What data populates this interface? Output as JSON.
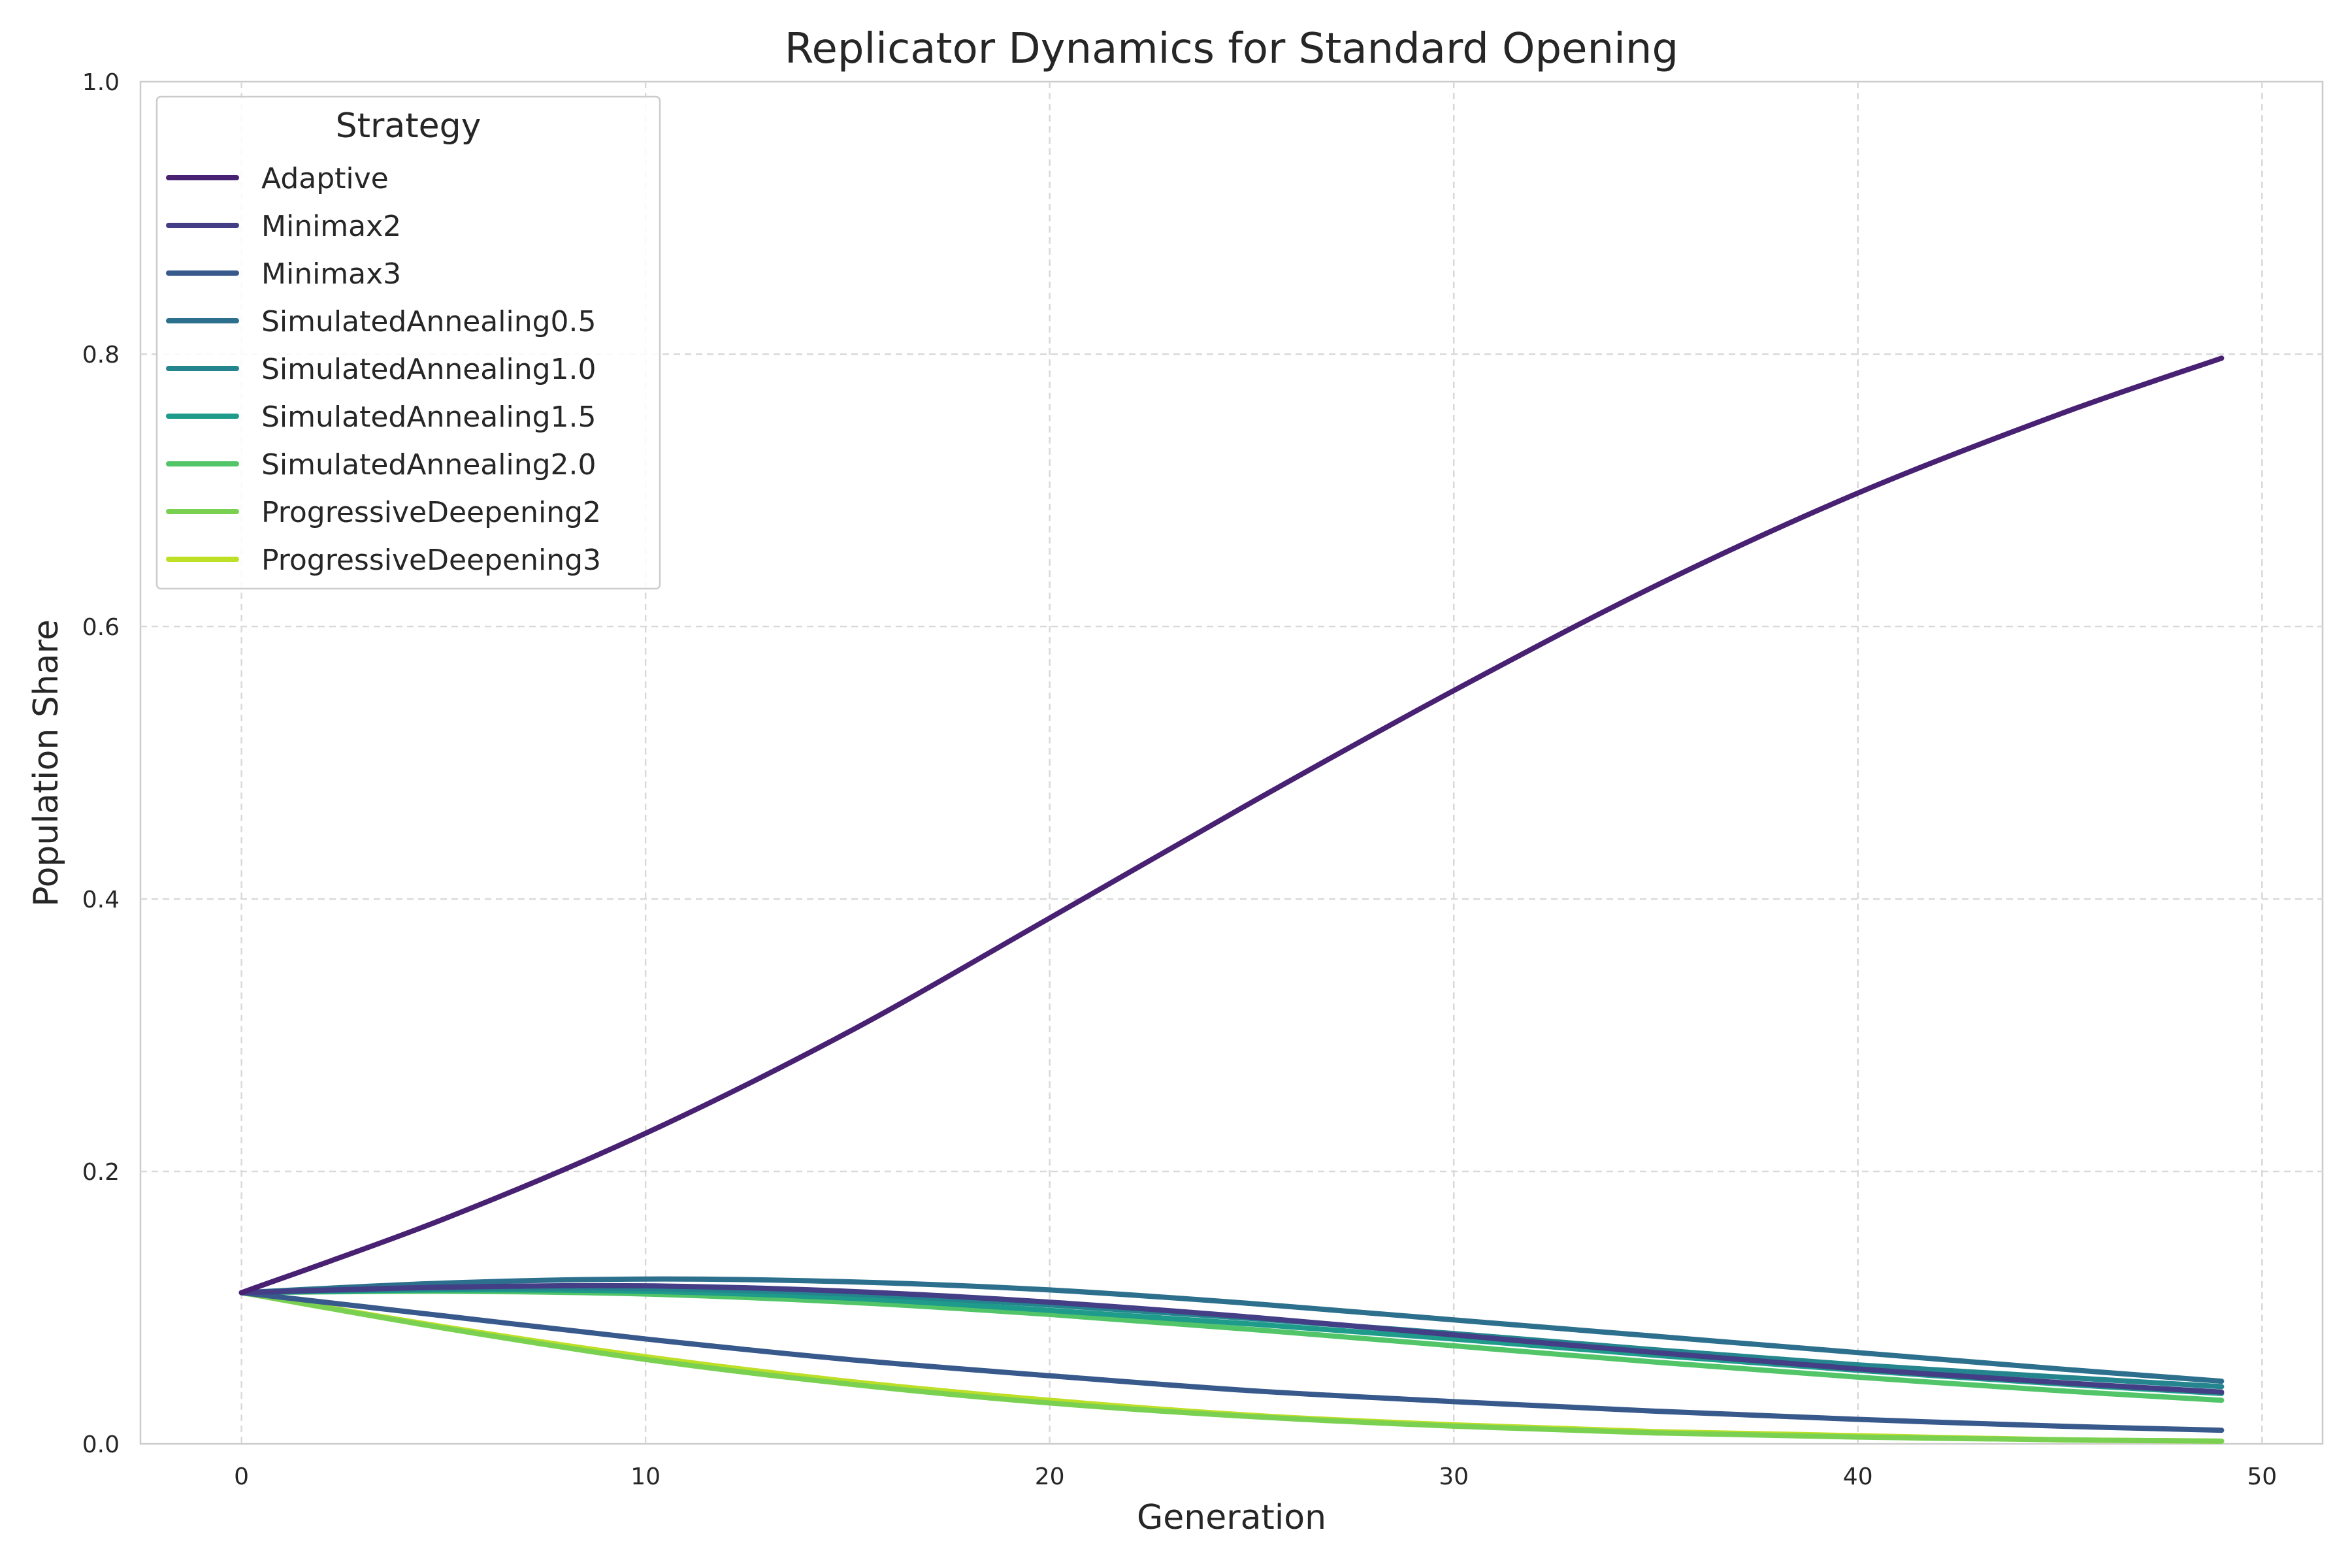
{
  "chart_data": {
    "type": "line",
    "title": "Replicator Dynamics for Standard Opening",
    "xlabel": "Generation",
    "ylabel": "Population Share",
    "xlim": [
      -2.5,
      51.5
    ],
    "ylim": [
      0.0,
      1.0
    ],
    "xticks": [
      "0",
      "10",
      "20",
      "30",
      "40",
      "50"
    ],
    "yticks": [
      "0.0",
      "0.2",
      "0.4",
      "0.6",
      "0.8",
      "1.0"
    ],
    "grid": true,
    "legend": {
      "title": "Strategy",
      "placement": "top-left"
    },
    "x": [
      0,
      5,
      10,
      15,
      20,
      25,
      30,
      35,
      40,
      45,
      49
    ],
    "series": [
      {
        "name": "Adaptive",
        "color": "#482173",
        "values": [
          0.111,
          0.165,
          0.228,
          0.302,
          0.386,
          0.471,
          0.553,
          0.63,
          0.698,
          0.756,
          0.797
        ]
      },
      {
        "name": "Minimax2",
        "color": "#433e85",
        "values": [
          0.111,
          0.115,
          0.116,
          0.112,
          0.104,
          0.093,
          0.08,
          0.067,
          0.055,
          0.045,
          0.038
        ]
      },
      {
        "name": "Minimax3",
        "color": "#38598c",
        "values": [
          0.111,
          0.094,
          0.077,
          0.062,
          0.05,
          0.039,
          0.031,
          0.024,
          0.018,
          0.013,
          0.01
        ]
      },
      {
        "name": "SimulatedAnnealing0.5",
        "color": "#2d708e",
        "values": [
          0.111,
          0.118,
          0.121,
          0.119,
          0.113,
          0.103,
          0.091,
          0.079,
          0.067,
          0.055,
          0.046
        ]
      },
      {
        "name": "SimulatedAnnealing1.0",
        "color": "#25858e",
        "values": [
          0.111,
          0.114,
          0.114,
          0.11,
          0.102,
          0.092,
          0.081,
          0.069,
          0.058,
          0.049,
          0.042
        ]
      },
      {
        "name": "SimulatedAnnealing1.5",
        "color": "#1e9b8a",
        "values": [
          0.111,
          0.113,
          0.112,
          0.107,
          0.098,
          0.088,
          0.077,
          0.065,
          0.054,
          0.044,
          0.037
        ]
      },
      {
        "name": "SimulatedAnnealing2.0",
        "color": "#52c569",
        "values": [
          0.111,
          0.112,
          0.11,
          0.104,
          0.095,
          0.084,
          0.072,
          0.06,
          0.049,
          0.039,
          0.032
        ]
      },
      {
        "name": "ProgressiveDeepening2",
        "color": "#7ad151",
        "values": [
          0.111,
          0.085,
          0.062,
          0.044,
          0.03,
          0.02,
          0.013,
          0.008,
          0.005,
          0.003,
          0.002
        ]
      },
      {
        "name": "ProgressiveDeepening3",
        "color": "#bddf26",
        "values": [
          0.111,
          0.086,
          0.064,
          0.046,
          0.032,
          0.021,
          0.014,
          0.009,
          0.006,
          0.003,
          0.002
        ]
      }
    ]
  }
}
